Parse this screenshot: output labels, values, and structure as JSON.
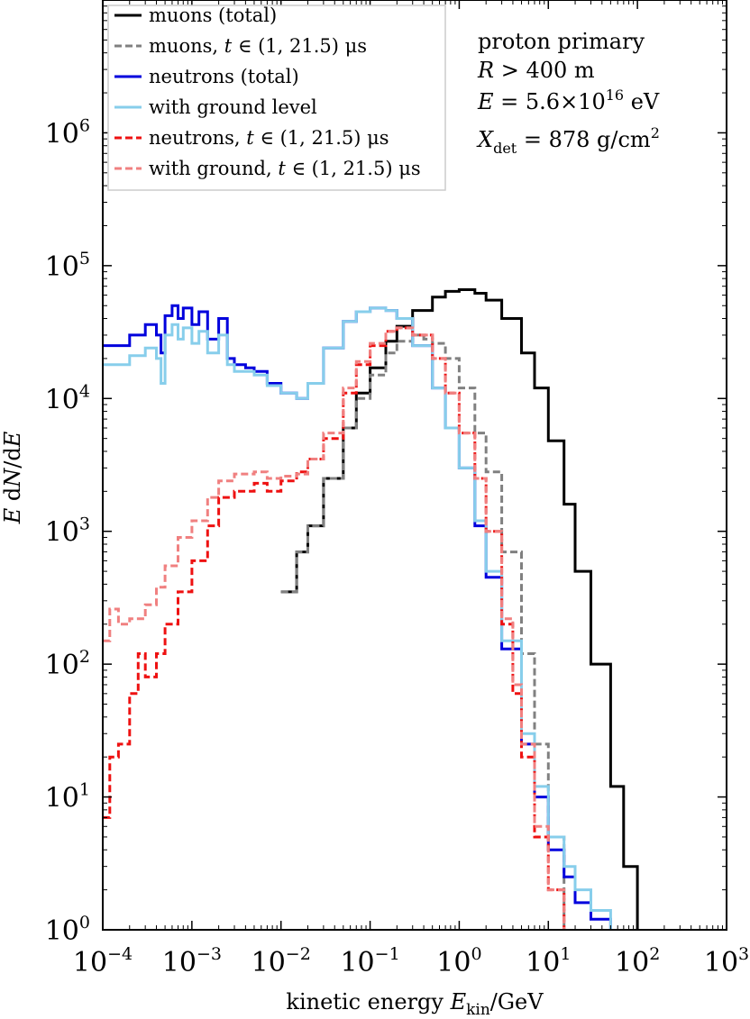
{
  "chart_data": {
    "type": "line",
    "xscale": "log",
    "yscale": "log",
    "xlim": [
      0.0001,
      1000
    ],
    "ylim": [
      1,
      10000000
    ],
    "xlabel": "kinetic energy E_kin / GeV",
    "ylabel": "E dN / dE",
    "x_ticks": [
      {
        "base": "10",
        "exp": "−4"
      },
      {
        "base": "10",
        "exp": "−3"
      },
      {
        "base": "10",
        "exp": "−2"
      },
      {
        "base": "10",
        "exp": "−1"
      },
      {
        "base": "10",
        "exp": "0"
      },
      {
        "base": "10",
        "exp": "1"
      },
      {
        "base": "10",
        "exp": "2"
      },
      {
        "base": "10",
        "exp": "3"
      }
    ],
    "y_ticks": [
      {
        "base": "10",
        "exp": "0"
      },
      {
        "base": "10",
        "exp": "1"
      },
      {
        "base": "10",
        "exp": "2"
      },
      {
        "base": "10",
        "exp": "3"
      },
      {
        "base": "10",
        "exp": "4"
      },
      {
        "base": "10",
        "exp": "5"
      },
      {
        "base": "10",
        "exp": "6"
      }
    ],
    "legend_position": "top-left",
    "annotation": [
      "proton primary",
      "R > 400 m",
      "E = 5.6×10^16 eV",
      "X_det = 878 g/cm^2"
    ],
    "series": [
      {
        "name": "muons (total)",
        "color": "#000000",
        "dash": "solid",
        "x": [
          0.01,
          0.015,
          0.02,
          0.03,
          0.05,
          0.07,
          0.1,
          0.15,
          0.2,
          0.3,
          0.5,
          0.7,
          1.0,
          1.5,
          2,
          3,
          5,
          7,
          10,
          15,
          20,
          30,
          50,
          70,
          100
        ],
        "y": [
          350,
          700,
          1100,
          2500,
          6000,
          11000,
          17000,
          27000,
          35000,
          46000,
          58000,
          64000,
          66000,
          62000,
          55000,
          40000,
          22000,
          12000,
          4800,
          1600,
          500,
          100,
          12,
          3,
          1
        ]
      },
      {
        "name": "muons, t ∈ (1, 21.5) μs",
        "color": "#808080",
        "dash": "dashed",
        "x": [
          0.01,
          0.015,
          0.02,
          0.03,
          0.05,
          0.07,
          0.1,
          0.15,
          0.2,
          0.3,
          0.4,
          0.5,
          0.7,
          1.0,
          1.5,
          2,
          3,
          5,
          7,
          10,
          15
        ],
        "y": [
          350,
          700,
          1100,
          2500,
          6000,
          10000,
          15000,
          22000,
          27000,
          30000,
          28000,
          26000,
          20000,
          12000,
          5500,
          2800,
          700,
          120,
          25,
          5,
          1
        ]
      },
      {
        "name": "neutrons (total)",
        "color": "#0000dd",
        "dash": "solid",
        "x": [
          0.0001,
          0.0002,
          0.0003,
          0.0004,
          0.00045,
          0.0005,
          0.0006,
          0.0007,
          0.0008,
          0.001,
          0.0012,
          0.0015,
          0.002,
          0.0025,
          0.003,
          0.004,
          0.005,
          0.007,
          0.01,
          0.015,
          0.02,
          0.03,
          0.05,
          0.07,
          0.1,
          0.15,
          0.2,
          0.3,
          0.5,
          0.7,
          1.0,
          1.5,
          2,
          3,
          5,
          7,
          10,
          15,
          20,
          30,
          50
        ],
        "y": [
          25000,
          30000,
          36000,
          30000,
          22000,
          42000,
          50000,
          40000,
          48000,
          36000,
          45000,
          28000,
          40000,
          20000,
          18000,
          17000,
          16000,
          13000,
          11000,
          10000,
          13000,
          24000,
          38000,
          45000,
          48000,
          46000,
          40000,
          25000,
          12000,
          6000,
          3000,
          1100,
          450,
          130,
          25,
          10,
          4,
          2.5,
          1.6,
          1.2,
          1
        ]
      },
      {
        "name": "with ground level",
        "color": "#87ceeb",
        "dash": "solid",
        "x": [
          0.0001,
          0.0002,
          0.0003,
          0.0004,
          0.00045,
          0.0005,
          0.0006,
          0.0007,
          0.0008,
          0.001,
          0.0012,
          0.0015,
          0.002,
          0.0025,
          0.003,
          0.004,
          0.005,
          0.007,
          0.01,
          0.015,
          0.02,
          0.03,
          0.05,
          0.07,
          0.1,
          0.15,
          0.2,
          0.3,
          0.5,
          0.7,
          1.0,
          1.5,
          2,
          3,
          5,
          7,
          10,
          15,
          20,
          30,
          50
        ],
        "y": [
          18000,
          21000,
          24000,
          20000,
          13000,
          30000,
          36000,
          28000,
          34000,
          26000,
          32000,
          22000,
          30000,
          18000,
          16000,
          16000,
          15000,
          12500,
          11000,
          10000,
          13000,
          24000,
          38000,
          45000,
          48000,
          46000,
          40000,
          25000,
          12000,
          6000,
          3000,
          1200,
          500,
          150,
          30,
          12,
          5,
          3,
          2,
          1.4,
          1
        ]
      },
      {
        "name": "neutrons, t ∈ (1, 21.5) μs",
        "color": "#ee1111",
        "dash": "dashed",
        "x": [
          0.0001,
          0.00012,
          0.00015,
          0.0002,
          0.00025,
          0.0003,
          0.0004,
          0.0005,
          0.0007,
          0.001,
          0.0015,
          0.002,
          0.003,
          0.005,
          0.007,
          0.01,
          0.015,
          0.02,
          0.03,
          0.05,
          0.07,
          0.1,
          0.15,
          0.2,
          0.3,
          0.5,
          0.7,
          1.0,
          1.5,
          2,
          3,
          4,
          5,
          7,
          10,
          15
        ],
        "y": [
          7,
          20,
          25,
          60,
          120,
          80,
          120,
          200,
          350,
          600,
          1100,
          1800,
          2000,
          2300,
          2000,
          2400,
          2800,
          3500,
          5000,
          11000,
          18000,
          25000,
          32000,
          34000,
          30000,
          20000,
          11000,
          5500,
          2500,
          1000,
          200,
          60,
          20,
          5,
          2,
          1
        ]
      },
      {
        "name": "with ground, t ∈ (1, 21.5) μs",
        "color": "#f08080",
        "dash": "dashed",
        "x": [
          0.0001,
          0.00012,
          0.00015,
          0.0002,
          0.0003,
          0.0004,
          0.0005,
          0.0007,
          0.001,
          0.0015,
          0.002,
          0.003,
          0.005,
          0.007,
          0.01,
          0.015,
          0.02,
          0.03,
          0.05,
          0.07,
          0.1,
          0.15,
          0.2,
          0.3,
          0.5,
          0.7,
          1.0,
          1.5,
          2,
          3,
          4,
          5,
          7,
          10,
          15
        ],
        "y": [
          150,
          260,
          200,
          220,
          280,
          380,
          550,
          900,
          1200,
          1800,
          2400,
          2700,
          2800,
          2500,
          2600,
          2700,
          3500,
          5500,
          12000,
          19000,
          26000,
          32000,
          34000,
          30000,
          20000,
          11000,
          5500,
          2500,
          1000,
          220,
          70,
          25,
          6,
          2,
          1
        ]
      }
    ]
  }
}
